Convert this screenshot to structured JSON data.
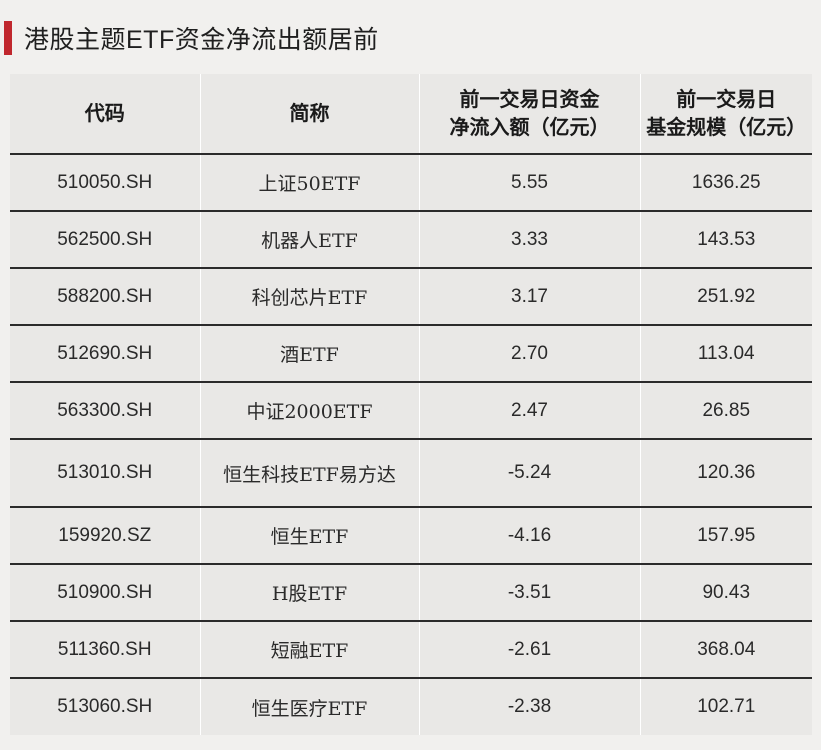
{
  "title": "港股主题ETF资金净流出额居前",
  "colors": {
    "accent": "#c0272d",
    "background": "#f1f0ee",
    "table_bg": "#e9e8e6"
  },
  "table": {
    "headers": [
      [
        "代码"
      ],
      [
        "简称"
      ],
      [
        "前一交易日资金",
        "净流入额（亿元）"
      ],
      [
        "前一交易日",
        "基金规模（亿元）"
      ]
    ],
    "rows": [
      {
        "code": "510050.SH",
        "name": "上证50ETF",
        "inflow": "5.55",
        "size": "1636.25"
      },
      {
        "code": "562500.SH",
        "name": "机器人ETF",
        "inflow": "3.33",
        "size": "143.53"
      },
      {
        "code": "588200.SH",
        "name": "科创芯片ETF",
        "inflow": "3.17",
        "size": "251.92"
      },
      {
        "code": "512690.SH",
        "name": "酒ETF",
        "inflow": "2.70",
        "size": "113.04"
      },
      {
        "code": "563300.SH",
        "name": "中证2000ETF",
        "inflow": "2.47",
        "size": "26.85"
      },
      {
        "code": "513010.SH",
        "name": "恒生科技ETF易方达",
        "inflow": "-5.24",
        "size": "120.36"
      },
      {
        "code": "159920.SZ",
        "name": "恒生ETF",
        "inflow": "-4.16",
        "size": "157.95"
      },
      {
        "code": "510900.SH",
        "name": "H股ETF",
        "inflow": "-3.51",
        "size": "90.43"
      },
      {
        "code": "511360.SH",
        "name": "短融ETF",
        "inflow": "-2.61",
        "size": "368.04"
      },
      {
        "code": "513060.SH",
        "name": "恒生医疗ETF",
        "inflow": "-2.38",
        "size": "102.71"
      }
    ]
  }
}
